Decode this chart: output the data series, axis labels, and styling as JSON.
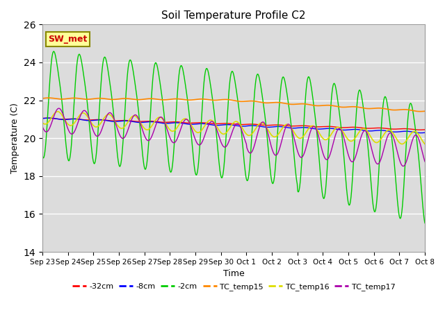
{
  "title": "Soil Temperature Profile C2",
  "xlabel": "Time",
  "ylabel": "Temperature (C)",
  "ylim": [
    14,
    26
  ],
  "yticks": [
    14,
    16,
    18,
    20,
    22,
    24,
    26
  ],
  "legend_label": "SW_met",
  "series_labels": [
    "-32cm",
    "-8cm",
    "-2cm",
    "TC_temp15",
    "TC_temp16",
    "TC_temp17"
  ],
  "series_colors": [
    "#ff0000",
    "#0000ff",
    "#00cc00",
    "#ff8800",
    "#dddd00",
    "#aa00aa"
  ],
  "x_tick_labels": [
    "Sep 23",
    "Sep 24",
    "Sep 25",
    "Sep 26",
    "Sep 27",
    "Sep 28",
    "Sep 29",
    "Sep 30",
    "Oct 1",
    "Oct 2",
    "Oct 3",
    "Oct 4",
    "Oct 5",
    "Oct 6",
    "Oct 7",
    "Oct 8"
  ],
  "background_color": "#dcdcdc",
  "fig_facecolor": "#ffffff",
  "linewidth_main": 1.0,
  "linewidth_tc": 1.2
}
